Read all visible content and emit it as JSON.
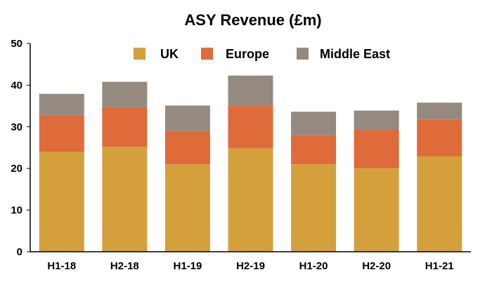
{
  "chart_data": {
    "type": "bar",
    "stacked": true,
    "title": "ASY Revenue (£m)",
    "xlabel": "",
    "ylabel": "",
    "categories": [
      "H1-18",
      "H2-18",
      "H1-19",
      "H2-19",
      "H1-20",
      "H2-20",
      "H1-21"
    ],
    "series": [
      {
        "name": "UK",
        "color": "#D4A03C",
        "values": [
          24,
          25.2,
          21,
          24.8,
          21,
          20,
          22.9
        ]
      },
      {
        "name": "Europe",
        "color": "#DF6A3A",
        "values": [
          8.7,
          9.5,
          8,
          10.2,
          6.9,
          9.2,
          8.8
        ]
      },
      {
        "name": "Middle East",
        "color": "#958A7F",
        "values": [
          5.2,
          6.1,
          6.1,
          7.3,
          5.7,
          4.7,
          4.1
        ]
      }
    ],
    "ylim": [
      0,
      50
    ],
    "yticks": [
      0,
      10,
      20,
      30,
      40,
      50
    ],
    "grid": false,
    "legend_position": "top"
  }
}
